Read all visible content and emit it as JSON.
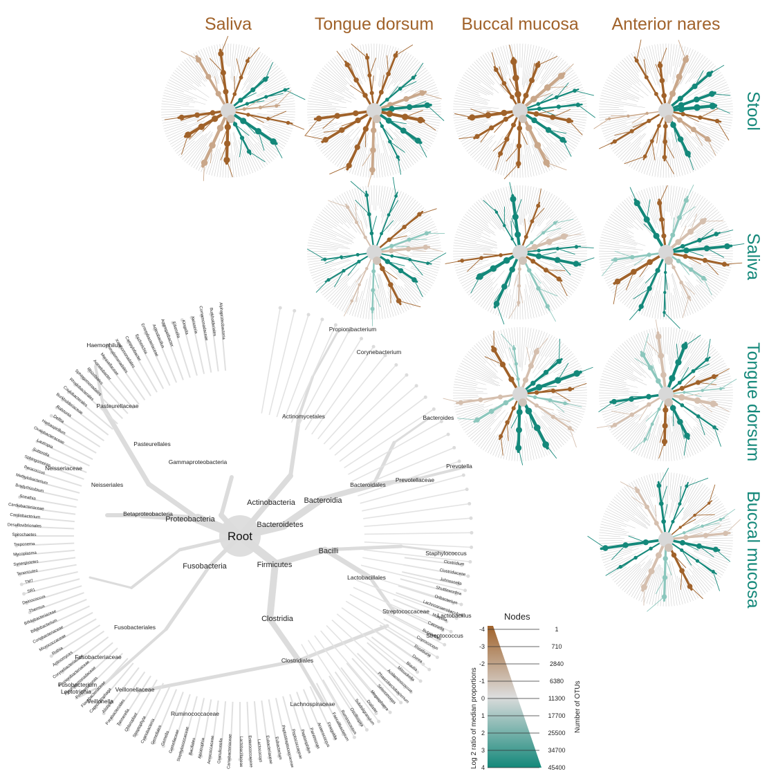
{
  "columns": [
    "Saliva",
    "Tongue dorsum",
    "Buccal mucosa",
    "Anterior nares"
  ],
  "rows": [
    "Stool",
    "Saliva",
    "Tongue dorsum",
    "Buccal mucosa"
  ],
  "colors": {
    "brown": "#a0622a",
    "teal": "#14887a",
    "gray": "#d9d9d9",
    "text_col": "#a0622a",
    "text_row": "#14887a"
  },
  "tree": {
    "root": "Root",
    "major": [
      "Proteobacteria",
      "Firmicutes",
      "Bacteroidetes",
      "Actinobacteria",
      "Fusobacteria",
      "Clostridia",
      "Bacilli",
      "Bacteroidia",
      "Gammaproteobacteria",
      "Betaproteobacteria",
      "Bacteroidales",
      "Actinomycetales",
      "Lactobacillales",
      "Clostridiales",
      "Prevotellaceae",
      "Pasteurellaceae",
      "Pasteurellales",
      "Neisseriales",
      "Neisseriaceae",
      "Fusobacteriales",
      "Fusobacteriaceae",
      "Streptococcaceae",
      "Lachnospiraceae",
      "Ruminococcaceae",
      "Veillonellaceae",
      "Prevotella",
      "Bacteroides",
      "Streptococcus",
      "Lactobacillus",
      "Staphylococcus",
      "Propionibacterium",
      "Corynebacterium",
      "Haemophilus",
      "Veillonella",
      "Leptotrichia",
      "Fusobacterium"
    ],
    "minor": [
      "Alphaproteobacteria",
      "Burkholderiales",
      "Comamonadaceae",
      "Neisseria",
      "Kingella",
      "Eikenella",
      "Aggregatibacter",
      "Actinobacillus",
      "Enterobacteriaceae",
      "Escherichia",
      "Campylobacter",
      "Xanthomonadales",
      "Pseudomonadales",
      "Moraxellaceae",
      "Acinetobacter",
      "Rhizobiales",
      "Sphingomonadales",
      "Rhodobacterales",
      "Caulobacterales",
      "Burkholderiaceae",
      "Ralstonia",
      "Delftia",
      "Herbaspirillum",
      "Oxalobacteraceae",
      "Lautropia",
      "Sutterella",
      "Sphingomonas",
      "Paracoccus",
      "Methylobacterium",
      "Bradyrhizobium",
      "Sneathia",
      "Cardiobacteriaceae",
      "Cardiobacterium",
      "Desulfovibrionales",
      "Spirochaetes",
      "Treponema",
      "Mycoplasma",
      "Synergistetes",
      "Tenericutes",
      "TM7",
      "SR1",
      "Deinococcus",
      "Thermus",
      "Bifidobacteriaceae",
      "Bifidobacterium",
      "Coriobacteriaceae",
      "Micrococcaceae",
      "Rothia",
      "Actinomyces",
      "Corynebacteriaceae",
      "Propionibacteriaceae",
      "Porphyromonadaceae",
      "Porphyromonas",
      "Flavobacteriaceae",
      "Capnocytophaga",
      "Alistipes",
      "Parabacteroides",
      "Tannerella",
      "Chloroplast",
      "Streptophyta",
      "Cyanobacteria",
      "Gemellales",
      "Gemella",
      "Gemellaceae",
      "Staphylococcaceae",
      "Bacillales",
      "Abiotrophia",
      "Aerococcaceae",
      "Granulicatella",
      "Carnobacteriaceae",
      "Lactobacillaceae",
      "Enterococcaceae",
      "Lactococcus",
      "Eubacteriaceae",
      "Eubacterium",
      "Peptostreptococcaceae",
      "Peptococcaceae",
      "Peptoniphilus",
      "Parvimonas",
      "Anaerococcus",
      "Finegoldia",
      "Faecalibacterium",
      "Ruminococcus",
      "Oscillospira",
      "Subdoligranulum",
      "Dialister",
      "Megasphaera",
      "Selenomonas",
      "Phascolarctobacterium",
      "Acidaminococcus",
      "Mitsuokella",
      "Blautia",
      "Dorea",
      "Roseburia",
      "Coprococcus",
      "Butyrivibrio",
      "Catonella",
      "Moryella",
      "Lachnoanaerobaculum",
      "Oribacterium",
      "Shuttleworthia",
      "Johnsonella",
      "Clostridiaceae",
      "Clostridium"
    ]
  },
  "legend": {
    "title": "Nodes",
    "ylabel": "Log 2 ratio of median proportions",
    "y2label": "Number of OTUs",
    "ratio_ticks": [
      "-4",
      "-3",
      "-2",
      "-1",
      "0",
      "1",
      "2",
      "3",
      "4"
    ],
    "otu_ticks": [
      "1",
      "710",
      "2840",
      "6380",
      "11300",
      "17700",
      "25500",
      "34700",
      "45400"
    ]
  }
}
